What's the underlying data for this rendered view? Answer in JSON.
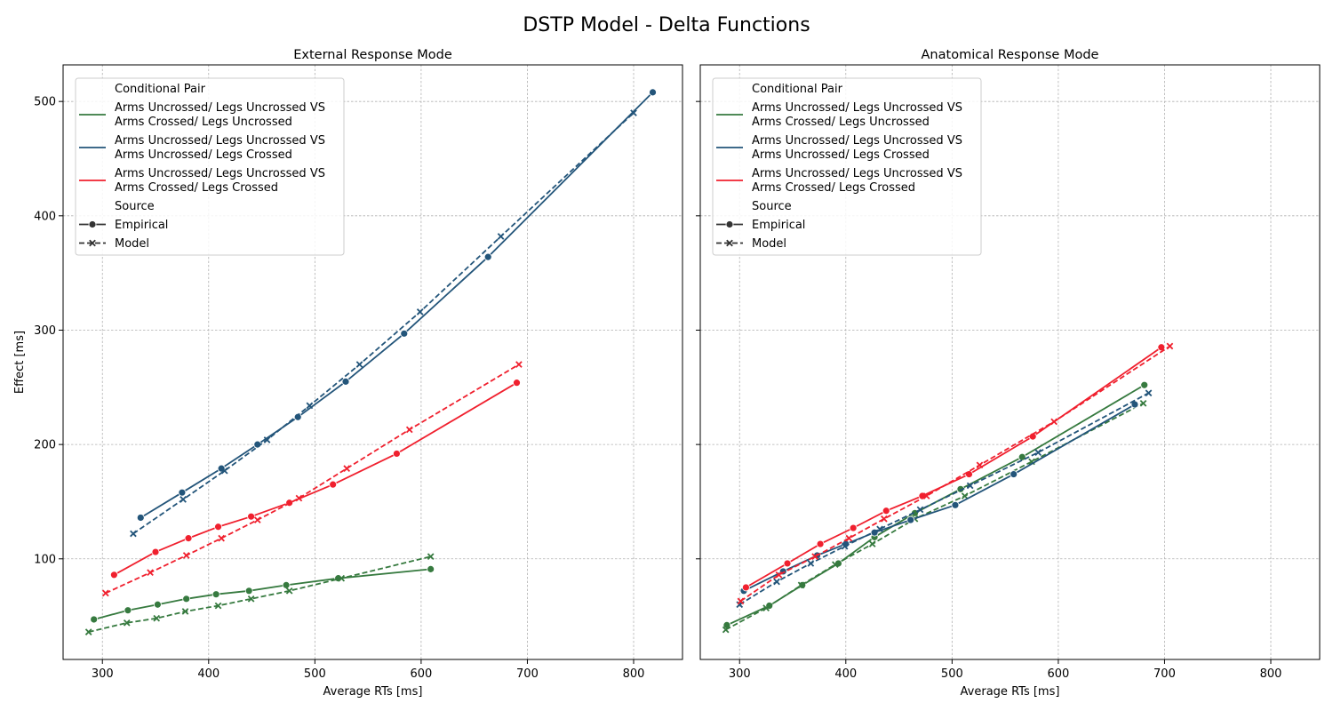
{
  "figure": {
    "title": "DSTP Model - Delta Functions"
  },
  "colors": {
    "green": "#367a3f",
    "blue": "#23557a",
    "red": "#f0202e",
    "legend_black": "#333333"
  },
  "legend": {
    "pair_header": "Conditional Pair",
    "source_header": "Source",
    "items": [
      {
        "line1": "Arms Uncrossed/ Legs Uncrossed VS",
        "line2": "Arms Crossed/ Legs Uncrossed",
        "color": "#367a3f"
      },
      {
        "line1": "Arms Uncrossed/ Legs Uncrossed VS",
        "line2": "Arms Uncrossed/ Legs Crossed",
        "color": "#23557a"
      },
      {
        "line1": "Arms Uncrossed/ Legs Uncrossed VS",
        "line2": "Arms Crossed/ Legs Crossed",
        "color": "#f0202e"
      }
    ],
    "sources": [
      {
        "label": "Empirical",
        "style": "solid",
        "marker": "circle"
      },
      {
        "label": "Model",
        "style": "dashed",
        "marker": "x"
      }
    ]
  },
  "chart_data": [
    {
      "type": "line",
      "title": "External Response Mode",
      "xlabel": "Average RTs [ms]",
      "ylabel": "Effect [ms]",
      "xlim": [
        263,
        846
      ],
      "ylim": [
        12,
        532
      ],
      "xticks": [
        300,
        400,
        500,
        600,
        700,
        800
      ],
      "yticks": [
        100,
        200,
        300,
        400,
        500
      ],
      "grid": true,
      "legend_position": "upper-left",
      "series": [
        {
          "name": "Arms Uncrossed/ Legs Uncrossed VS Arms Crossed/ Legs Uncrossed",
          "source": "Empirical",
          "color": "#367a3f",
          "x": [
            292,
            324,
            352,
            379,
            407,
            438,
            473,
            522,
            609
          ],
          "y": [
            47,
            55,
            60,
            65,
            69,
            72,
            77,
            83,
            91
          ]
        },
        {
          "name": "Arms Uncrossed/ Legs Uncrossed VS Arms Crossed/ Legs Uncrossed",
          "source": "Model",
          "color": "#367a3f",
          "x": [
            287,
            323,
            351,
            378,
            409,
            440,
            476,
            525,
            609
          ],
          "y": [
            36,
            44,
            48,
            54,
            59,
            65,
            72,
            83,
            102
          ]
        },
        {
          "name": "Arms Uncrossed/ Legs Uncrossed VS Arms Uncrossed/ Legs Crossed",
          "source": "Empirical",
          "color": "#23557a",
          "x": [
            336,
            375,
            412,
            446,
            484,
            529,
            584,
            663,
            818
          ],
          "y": [
            136,
            158,
            179,
            200,
            224,
            255,
            297,
            364,
            508
          ]
        },
        {
          "name": "Arms Uncrossed/ Legs Uncrossed VS Arms Uncrossed/ Legs Crossed",
          "source": "Model",
          "color": "#23557a",
          "x": [
            329,
            376,
            415,
            455,
            495,
            542,
            599,
            675,
            800
          ],
          "y": [
            122,
            152,
            177,
            204,
            234,
            270,
            316,
            382,
            490
          ]
        },
        {
          "name": "Arms Uncrossed/ Legs Uncrossed VS Arms Crossed/ Legs Crossed",
          "source": "Empirical",
          "color": "#f0202e",
          "x": [
            311,
            350,
            381,
            409,
            440,
            476,
            517,
            577,
            690
          ],
          "y": [
            86,
            106,
            118,
            128,
            137,
            149,
            165,
            192,
            254
          ]
        },
        {
          "name": "Arms Uncrossed/ Legs Uncrossed VS Arms Crossed/ Legs Crossed",
          "source": "Model",
          "color": "#f0202e",
          "x": [
            303,
            345,
            379,
            412,
            446,
            485,
            530,
            589,
            692
          ],
          "y": [
            70,
            88,
            103,
            118,
            134,
            153,
            179,
            213,
            270
          ]
        }
      ]
    },
    {
      "type": "line",
      "title": "Anatomical Response Mode",
      "xlabel": "Average RTs [ms]",
      "ylabel": "",
      "xlim": [
        263,
        846
      ],
      "ylim": [
        12,
        532
      ],
      "xticks": [
        300,
        400,
        500,
        600,
        700,
        800
      ],
      "yticks": [
        100,
        200,
        300,
        400,
        500
      ],
      "grid": true,
      "legend_position": "upper-left",
      "series": [
        {
          "name": "Arms Uncrossed/ Legs Uncrossed VS Arms Crossed/ Legs Uncrossed",
          "source": "Empirical",
          "color": "#367a3f",
          "x": [
            288,
            328,
            359,
            393,
            427,
            465,
            508,
            566,
            681
          ],
          "y": [
            42,
            59,
            77,
            96,
            119,
            140,
            161,
            189,
            252
          ]
        },
        {
          "name": "Arms Uncrossed/ Legs Uncrossed VS Arms Crossed/ Legs Uncrossed",
          "source": "Model",
          "color": "#367a3f",
          "x": [
            287,
            325,
            358,
            390,
            425,
            465,
            512,
            575,
            680
          ],
          "y": [
            38,
            57,
            77,
            95,
            113,
            135,
            155,
            185,
            236
          ]
        },
        {
          "name": "Arms Uncrossed/ Legs Uncrossed VS Arms Uncrossed/ Legs Crossed",
          "source": "Empirical",
          "color": "#23557a",
          "x": [
            304,
            341,
            373,
            400,
            427,
            461,
            503,
            558,
            672
          ],
          "y": [
            72,
            89,
            103,
            113,
            123,
            134,
            147,
            174,
            235
          ]
        },
        {
          "name": "Arms Uncrossed/ Legs Uncrossed VS Arms Uncrossed/ Legs Crossed",
          "source": "Model",
          "color": "#23557a",
          "x": [
            300,
            335,
            367,
            399,
            432,
            470,
            517,
            581,
            685
          ],
          "y": [
            60,
            80,
            96,
            111,
            126,
            143,
            164,
            193,
            245
          ]
        },
        {
          "name": "Arms Uncrossed/ Legs Uncrossed VS Arms Crossed/ Legs Crossed",
          "source": "Empirical",
          "color": "#f0202e",
          "x": [
            306,
            345,
            376,
            407,
            438,
            472,
            516,
            576,
            697
          ],
          "y": [
            75,
            96,
            113,
            127,
            142,
            155,
            174,
            207,
            285
          ]
        },
        {
          "name": "Arms Uncrossed/ Legs Uncrossed VS Arms Crossed/ Legs Crossed",
          "source": "Model",
          "color": "#f0202e",
          "x": [
            301,
            337,
            371,
            403,
            436,
            476,
            526,
            596,
            705
          ],
          "y": [
            63,
            86,
            102,
            118,
            135,
            155,
            182,
            220,
            286
          ]
        }
      ]
    }
  ]
}
